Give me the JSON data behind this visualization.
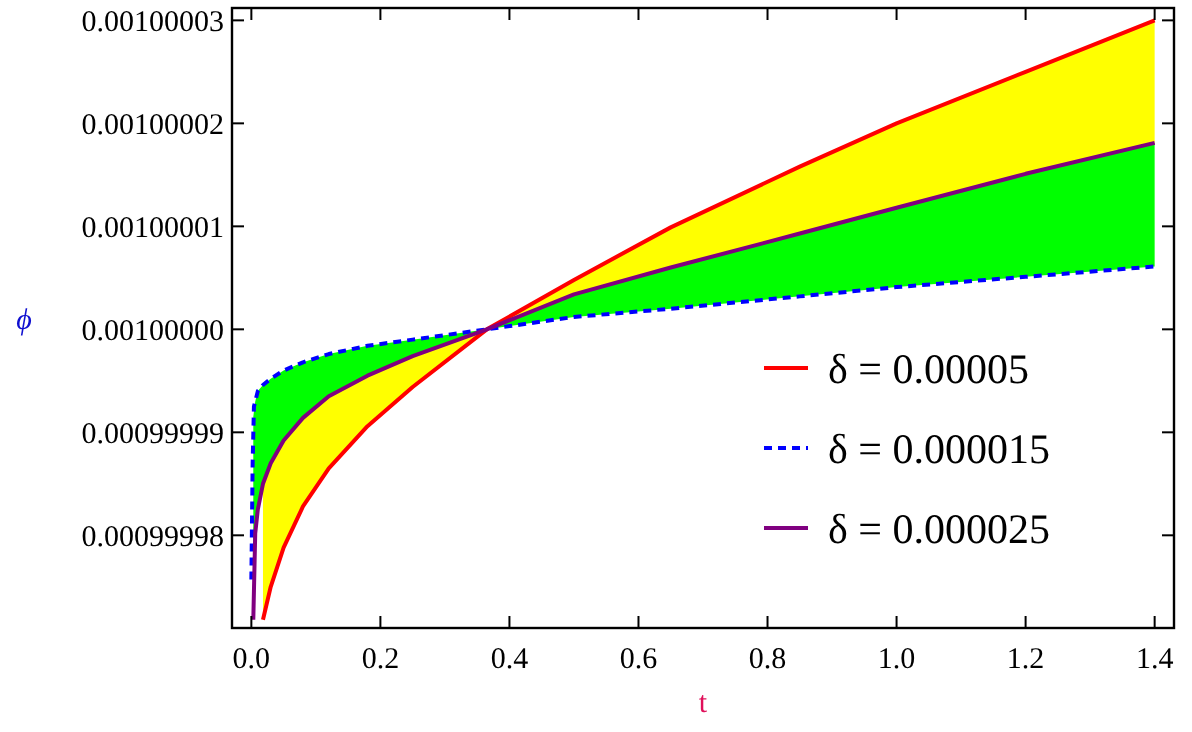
{
  "chart_data": {
    "type": "line",
    "xlabel": "t",
    "ylabel": "ϕ",
    "xlim": [
      -0.03,
      1.43
    ],
    "ylim": [
      0.000999971,
      0.0010000312
    ],
    "xticks": [
      {
        "value": 0,
        "label": "0.0"
      },
      0.2,
      0.4,
      0.6,
      0.8,
      {
        "value": 1,
        "label": "1.0"
      },
      1.2,
      1.4
    ],
    "yticks": [
      0.00099998,
      0.00099999,
      {
        "value": 0.001,
        "label": "0.00100000"
      },
      0.00100001,
      0.00100002,
      0.00100003
    ],
    "grid": false,
    "legend": "bottom right",
    "series": [
      {
        "name": "δ = 0.00005",
        "color": "#ff0000",
        "line_style": "solid",
        "x": [
          0.018,
          0.03,
          0.05,
          0.08,
          0.12,
          0.18,
          0.25,
          0.365,
          0.5,
          0.65,
          0.85,
          1.0,
          1.2,
          1.4
        ],
        "values": [
          0.0009999718,
          0.000999975,
          0.0009999788,
          0.0009999828,
          0.0009999865,
          0.0009999906,
          0.0009999944,
          0.001,
          0.0010000048,
          0.0010000099,
          0.0010000158,
          0.00100002,
          0.001000025,
          0.00100003
        ],
        "lower": [
          0.000999985,
          0.000999987,
          0.0009999892,
          0.0009999914,
          0.0009999935,
          0.0009999955,
          0.0009999974,
          0.001,
          0.0010000034,
          0.001000006,
          0.0010000093,
          0.0010000118,
          0.0010000151,
          0.0010000181
        ],
        "upper": [
          0.0009999718,
          0.000999975,
          0.0009999788,
          0.0009999828,
          0.0009999865,
          0.0009999906,
          0.0009999944,
          0.001,
          0.0010000048,
          0.0010000099,
          0.0010000158,
          0.00100002,
          0.001000025,
          0.00100003
        ]
      },
      {
        "name": "δ = 0.000015",
        "color": "#0000ff",
        "line_style": "dashed",
        "x": [
          0,
          0.002,
          0.004,
          0.01,
          0.018,
          0.03,
          0.05,
          0.08,
          0.12,
          0.18,
          0.25,
          0.365,
          0.5,
          0.65,
          0.85,
          1.0,
          1.2,
          1.4
        ],
        "values": [
          0.0009999757,
          0.000999987,
          0.0009999925,
          0.000999994,
          0.0009999946,
          0.0009999952,
          0.000999996,
          0.0009999968,
          0.0009999976,
          0.0009999984,
          0.000999999,
          0.001,
          0.0010000012,
          0.001000002,
          0.0010000032,
          0.0010000041,
          0.0010000051,
          0.0010000061
        ]
      },
      {
        "name": "δ = 0.000025",
        "color": "#800080",
        "line_style": "solid",
        "x": [
          0.003,
          0.006,
          0.01,
          0.018,
          0.03,
          0.05,
          0.08,
          0.12,
          0.18,
          0.25,
          0.365,
          0.5,
          0.65,
          0.85,
          1.0,
          1.2,
          1.4
        ],
        "values": [
          0.0009999718,
          0.0009999802,
          0.0009999825,
          0.000999985,
          0.000999987,
          0.0009999892,
          0.0009999914,
          0.0009999935,
          0.0009999955,
          0.0009999974,
          0.001,
          0.0010000034,
          0.001000006,
          0.0010000093,
          0.0010000118,
          0.0010000151,
          0.0010000181
        ],
        "lower": [
          0.0009999915,
          0.000999993,
          0.000999994,
          0.0009999946,
          0.0009999952,
          0.000999996,
          0.0009999968,
          0.0009999976,
          0.0009999984,
          0.000999999,
          0.001,
          0.0010000012,
          0.001000002,
          0.0010000032,
          0.0010000041,
          0.0010000051,
          0.0010000061
        ],
        "upper": [
          0.0009999718,
          0.0009999802,
          0.0009999825,
          0.000999985,
          0.000999987,
          0.0009999892,
          0.0009999914,
          0.0009999935,
          0.0009999955,
          0.0009999974,
          0.001,
          0.0010000034,
          0.001000006,
          0.0010000093,
          0.0010000118,
          0.0010000151,
          0.0010000181
        ]
      }
    ]
  }
}
